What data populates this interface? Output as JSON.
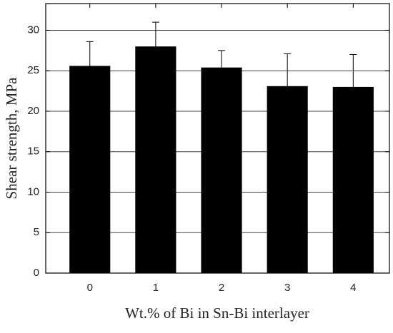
{
  "chart_data": {
    "type": "bar",
    "x_label": "Wt.% of Bi in Sn-Bi interlayer",
    "y_label": "Shear strength, MPa",
    "x": [
      0,
      1,
      2,
      3,
      4
    ],
    "values": [
      25.6,
      28.0,
      25.4,
      23.1,
      23.0
    ],
    "errors": [
      3.0,
      3.0,
      2.1,
      4.0,
      4.0
    ],
    "color": "#000000",
    "xlim": [
      -0.67,
      4.55
    ],
    "xticks": [
      0,
      1,
      2,
      3,
      4
    ],
    "ylim": [
      0,
      33.3
    ],
    "yticks": [
      0,
      5,
      10,
      15,
      20,
      25,
      30
    ],
    "grid": true
  }
}
